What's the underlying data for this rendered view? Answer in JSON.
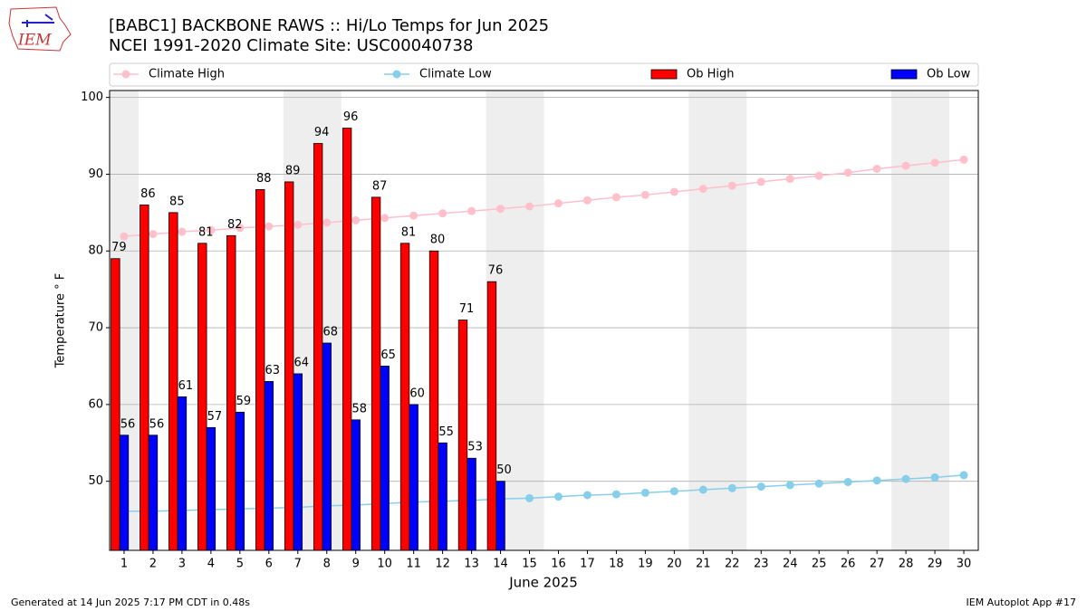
{
  "logo_text": "IEM",
  "footer_left": "Generated at 14 Jun 2025 7:17 PM CDT in 0.48s",
  "footer_right": "IEM Autoplot App #17",
  "chart_data": {
    "type": "combo",
    "title": "[BABC1] BACKBONE RAWS :: Hi/Lo Temps for Jun 2025",
    "subtitle": "NCEI 1991-2020 Climate Site: USC00040738",
    "xlabel": "June 2025",
    "ylabel": "Temperature ° F",
    "x": [
      1,
      2,
      3,
      4,
      5,
      6,
      7,
      8,
      9,
      10,
      11,
      12,
      13,
      14,
      15,
      16,
      17,
      18,
      19,
      20,
      21,
      22,
      23,
      24,
      25,
      26,
      27,
      28,
      29,
      30
    ],
    "xlim": [
      0.5,
      30.5
    ],
    "xticks": [
      1,
      2,
      3,
      4,
      5,
      6,
      7,
      8,
      9,
      10,
      11,
      12,
      13,
      14,
      15,
      16,
      17,
      18,
      19,
      20,
      21,
      22,
      23,
      24,
      25,
      26,
      27,
      28,
      29,
      30
    ],
    "ylim": [
      41,
      100.9
    ],
    "yticks": [
      50,
      60,
      70,
      80,
      90,
      100
    ],
    "grid": true,
    "legend": "top",
    "shaded_x": [
      [
        0.5,
        1.5
      ],
      [
        6.5,
        8.5
      ],
      [
        13.5,
        15.5
      ],
      [
        20.5,
        22.5
      ],
      [
        27.5,
        29.5
      ]
    ],
    "shade_color": "#eeeeee",
    "series": [
      {
        "name": "Climate High",
        "type": "line",
        "color": "pink",
        "values": [
          81.9,
          82.2,
          82.5,
          82.7,
          83.0,
          83.2,
          83.4,
          83.7,
          84.0,
          84.3,
          84.6,
          84.9,
          85.2,
          85.5,
          85.8,
          86.2,
          86.6,
          87.0,
          87.3,
          87.7,
          88.1,
          88.5,
          89.0,
          89.4,
          89.8,
          90.2,
          90.7,
          91.1,
          91.5,
          91.9
        ]
      },
      {
        "name": "Climate Low",
        "type": "line",
        "color": "skyblue",
        "values": [
          46.1,
          46.1,
          46.2,
          46.3,
          46.4,
          46.5,
          46.6,
          46.8,
          46.9,
          47.1,
          47.3,
          47.4,
          47.5,
          47.7,
          47.8,
          48.0,
          48.2,
          48.3,
          48.5,
          48.7,
          48.9,
          49.1,
          49.3,
          49.5,
          49.7,
          49.9,
          50.1,
          50.3,
          50.5,
          50.8
        ]
      },
      {
        "name": "Ob High",
        "type": "bar",
        "color": "red",
        "values": [
          79,
          86,
          85,
          81,
          82,
          88,
          89,
          94,
          96,
          87,
          81,
          80,
          71,
          76,
          null,
          null,
          null,
          null,
          null,
          null,
          null,
          null,
          null,
          null,
          null,
          null,
          null,
          null,
          null,
          null
        ]
      },
      {
        "name": "Ob Low",
        "type": "bar",
        "color": "blue",
        "values": [
          56,
          56,
          61,
          57,
          59,
          63,
          64,
          68,
          58,
          65,
          60,
          55,
          53,
          50,
          null,
          null,
          null,
          null,
          null,
          null,
          null,
          null,
          null,
          null,
          null,
          null,
          null,
          null,
          null,
          null
        ]
      }
    ]
  }
}
